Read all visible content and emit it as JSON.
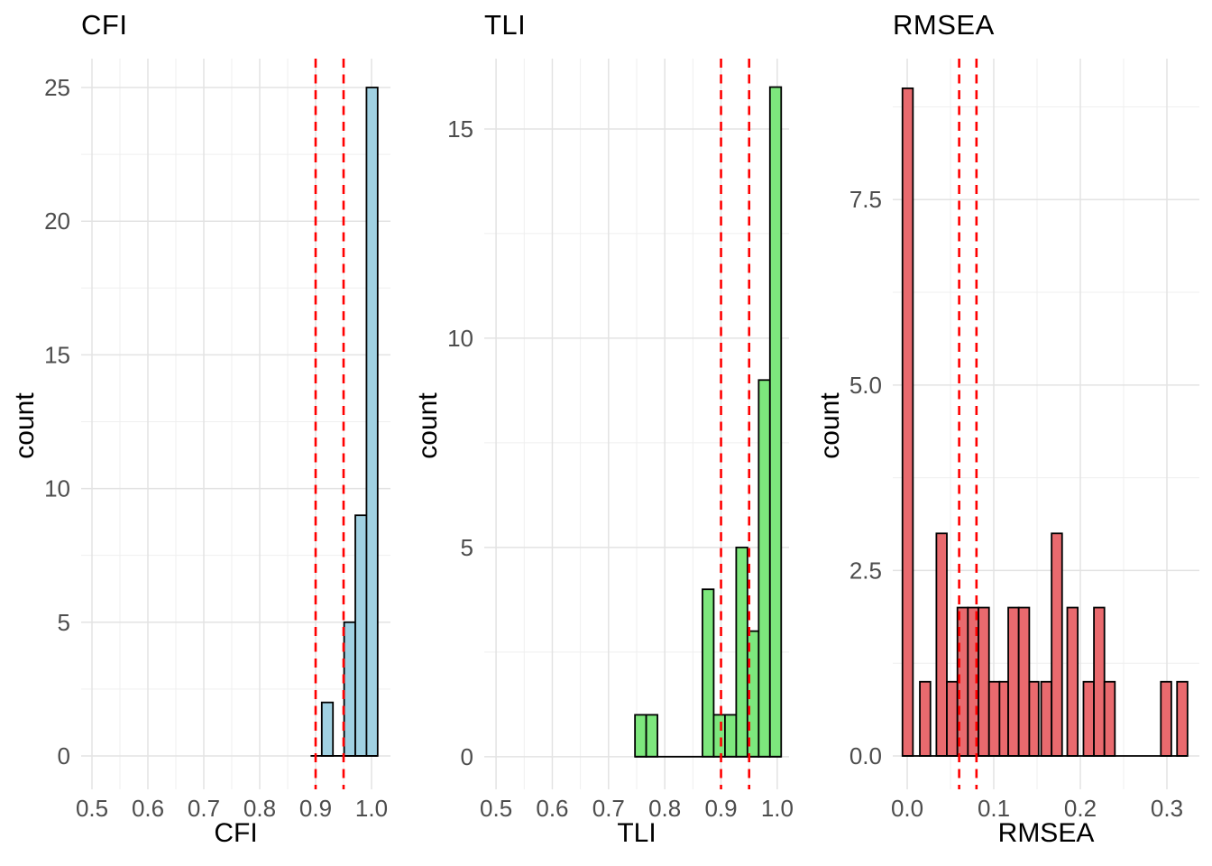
{
  "figure": {
    "type": "histogram-grid",
    "background": "#FFFFFF",
    "panel_count": 3
  },
  "style": {
    "grid_major": "#E3E3E3",
    "grid_minor": "#EFEFEF",
    "bar_outline": "#000000",
    "tick_label_color": "#4D4D4D",
    "text_color": "#000000"
  },
  "chart_data": [
    {
      "id": "cfi",
      "type": "bar",
      "title": "CFI",
      "xlabel": "CFI",
      "ylabel": "count",
      "fill": "#A0D1E2",
      "cutoff_color": "#FF0000",
      "cutoff_lines": [
        0.9,
        0.95
      ],
      "xlim": [
        0.4806,
        1.0339
      ],
      "ylim": [
        -1.25,
        26.08
      ],
      "x_ticks": [
        0.5,
        0.6,
        0.7,
        0.8,
        0.9,
        1.0
      ],
      "x_tick_labels": [
        "0.5",
        "0.6",
        "0.7",
        "0.8",
        "0.9",
        "1.0"
      ],
      "x_minor_ticks": [
        0.55,
        0.65,
        0.75,
        0.85,
        0.95
      ],
      "y_ticks": [
        0,
        5,
        10,
        15,
        20,
        25
      ],
      "y_tick_labels": [
        "0",
        "5",
        "10",
        "15",
        "20",
        "25"
      ],
      "y_minor_ticks": [
        2.5,
        7.5,
        12.5,
        17.5,
        22.5
      ],
      "grid": true,
      "legend": "none",
      "bars": [
        {
          "x0": 0.911,
          "x1": 0.931,
          "count": 2
        },
        {
          "x0": 0.951,
          "x1": 0.971,
          "count": 5
        },
        {
          "x0": 0.971,
          "x1": 0.991,
          "count": 9
        },
        {
          "x0": 0.991,
          "x1": 1.011,
          "count": 25
        }
      ],
      "baseline": [
        0.891,
        1.011
      ]
    },
    {
      "id": "tli",
      "type": "bar",
      "title": "TLI",
      "xlabel": "TLI",
      "ylabel": "count",
      "fill": "#7DE77D",
      "cutoff_color": "#FF0000",
      "cutoff_lines": [
        0.9,
        0.95
      ],
      "xlim": [
        0.479,
        1.021
      ],
      "ylim": [
        -0.78,
        16.68
      ],
      "x_ticks": [
        0.5,
        0.6,
        0.7,
        0.8,
        0.9,
        1.0
      ],
      "x_tick_labels": [
        "0.5",
        "0.6",
        "0.7",
        "0.8",
        "0.9",
        "1.0"
      ],
      "x_minor_ticks": [
        0.55,
        0.65,
        0.75,
        0.85,
        0.95
      ],
      "y_ticks": [
        0,
        5,
        10,
        15
      ],
      "y_tick_labels": [
        "0",
        "5",
        "10",
        "15"
      ],
      "y_minor_ticks": [
        2.5,
        7.5,
        12.5
      ],
      "grid": true,
      "legend": "none",
      "bars": [
        {
          "x0": 0.747,
          "x1": 0.767,
          "count": 1
        },
        {
          "x0": 0.767,
          "x1": 0.787,
          "count": 1
        },
        {
          "x0": 0.867,
          "x1": 0.887,
          "count": 4
        },
        {
          "x0": 0.887,
          "x1": 0.907,
          "count": 1
        },
        {
          "x0": 0.907,
          "x1": 0.927,
          "count": 1
        },
        {
          "x0": 0.927,
          "x1": 0.947,
          "count": 5
        },
        {
          "x0": 0.947,
          "x1": 0.967,
          "count": 3
        },
        {
          "x0": 0.967,
          "x1": 0.987,
          "count": 9
        },
        {
          "x0": 0.987,
          "x1": 1.007,
          "count": 16
        }
      ],
      "baseline": [
        0.747,
        1.007
      ]
    },
    {
      "id": "rmsea",
      "type": "bar",
      "title": "RMSEA",
      "xlabel": "RMSEA",
      "ylabel": "count",
      "fill": "#E96A6E",
      "cutoff_color": "#FF0000",
      "cutoff_lines": [
        0.06,
        0.08
      ],
      "xlim": [
        -0.0167,
        0.3375
      ],
      "ylim": [
        -0.45,
        9.4
      ],
      "x_ticks": [
        0.0,
        0.1,
        0.2,
        0.3
      ],
      "x_tick_labels": [
        "0.0",
        "0.1",
        "0.2",
        "0.3"
      ],
      "x_minor_ticks": [
        0.05,
        0.15,
        0.25
      ],
      "y_ticks": [
        0,
        2.5,
        5.0,
        7.5
      ],
      "y_tick_labels": [
        "0.0",
        "2.5",
        "5.0",
        "7.5"
      ],
      "y_minor_ticks": [
        1.25,
        3.75,
        6.25,
        8.75
      ],
      "grid": true,
      "legend": "none",
      "bars": [
        {
          "x0": -0.0055,
          "x1": 0.0066,
          "count": 9
        },
        {
          "x0": 0.0146,
          "x1": 0.0268,
          "count": 1
        },
        {
          "x0": 0.0337,
          "x1": 0.0458,
          "count": 3
        },
        {
          "x0": 0.0458,
          "x1": 0.058,
          "count": 1
        },
        {
          "x0": 0.058,
          "x1": 0.0701,
          "count": 2
        },
        {
          "x0": 0.0701,
          "x1": 0.0823,
          "count": 2
        },
        {
          "x0": 0.0823,
          "x1": 0.0945,
          "count": 2
        },
        {
          "x0": 0.0945,
          "x1": 0.1066,
          "count": 1
        },
        {
          "x0": 0.1066,
          "x1": 0.1167,
          "count": 1
        },
        {
          "x0": 0.1167,
          "x1": 0.1288,
          "count": 2
        },
        {
          "x0": 0.1288,
          "x1": 0.141,
          "count": 2
        },
        {
          "x0": 0.141,
          "x1": 0.1518,
          "count": 1
        },
        {
          "x0": 0.1547,
          "x1": 0.1668,
          "count": 1
        },
        {
          "x0": 0.1668,
          "x1": 0.1789,
          "count": 3
        },
        {
          "x0": 0.1849,
          "x1": 0.197,
          "count": 2
        },
        {
          "x0": 0.2036,
          "x1": 0.2157,
          "count": 1
        },
        {
          "x0": 0.2157,
          "x1": 0.2278,
          "count": 2
        },
        {
          "x0": 0.2278,
          "x1": 0.2399,
          "count": 1
        },
        {
          "x0": 0.293,
          "x1": 0.3051,
          "count": 1
        },
        {
          "x0": 0.3117,
          "x1": 0.3238,
          "count": 1
        }
      ],
      "baseline": [
        -0.0055,
        0.3238
      ]
    }
  ]
}
